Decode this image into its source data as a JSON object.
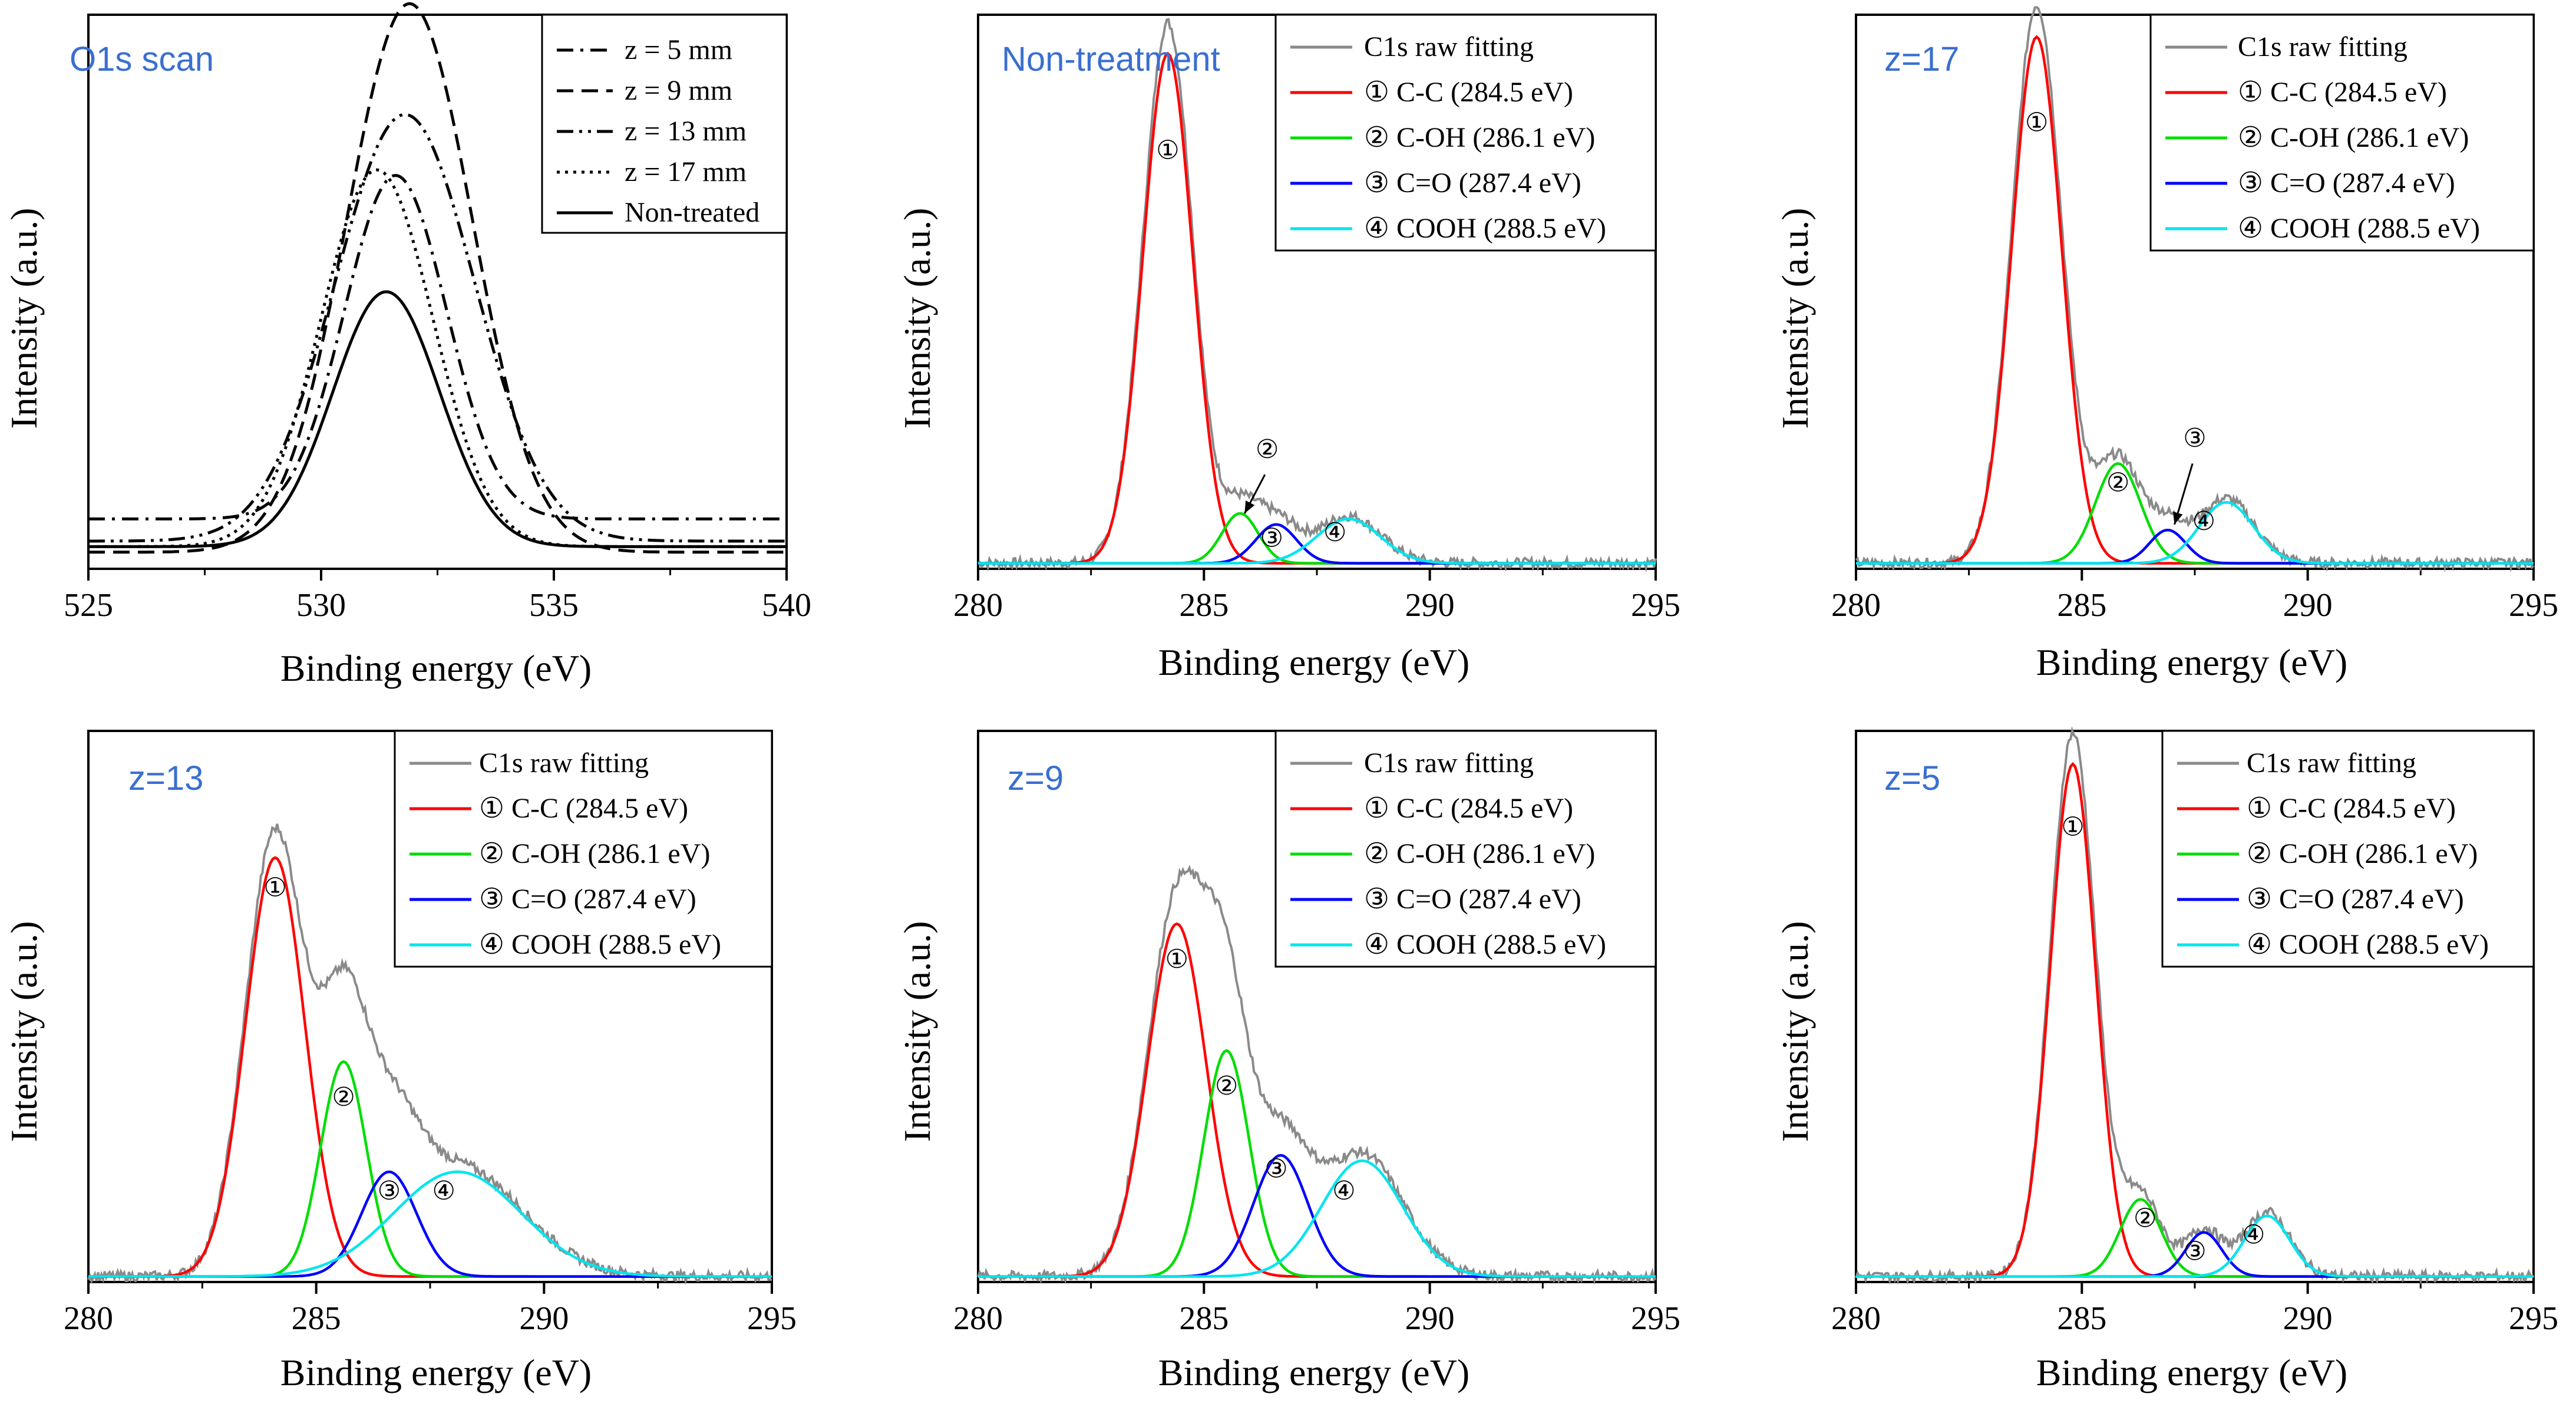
{
  "chart_data": [
    {
      "id": "p1",
      "type": "line",
      "tag": "O1s scan",
      "xlabel": "Binding energy (eV)",
      "ylabel": "Intensity (a.u.)",
      "xlim": [
        525,
        540
      ],
      "ylim": [
        0,
        1
      ],
      "xticks": [
        525,
        530,
        535,
        540
      ],
      "legend_position": "top-right",
      "series": [
        {
          "name": "z = 5 mm",
          "style": "dashdot",
          "baseline": 0.09,
          "amplitude": 0.62,
          "center": 531.6,
          "sigma": 1.1
        },
        {
          "name": "z = 9 mm",
          "style": "dashed",
          "baseline": 0.03,
          "amplitude": 0.99,
          "center": 531.9,
          "sigma": 1.35
        },
        {
          "name": "z = 13 mm",
          "style": "dashdotdot",
          "baseline": 0.05,
          "amplitude": 0.77,
          "center": 531.8,
          "sigma": 1.5
        },
        {
          "name": "z = 17 mm",
          "style": "dotted",
          "baseline": 0.04,
          "amplitude": 0.68,
          "center": 531.2,
          "sigma": 1.2
        },
        {
          "name": "Non-treated",
          "style": "solid",
          "baseline": 0.04,
          "amplitude": 0.46,
          "center": 531.4,
          "sigma": 1.15
        }
      ]
    },
    {
      "id": "p2",
      "type": "line",
      "tag": "Non-treatment",
      "xlabel": "Binding energy (eV)",
      "ylabel": "Intensity (a.u.)",
      "xlim": [
        280,
        295
      ],
      "ylim": [
        0,
        1
      ],
      "xticks": [
        280,
        285,
        290,
        295
      ],
      "legend_position": "top-right",
      "legend": [
        "C1s raw fitting",
        "① C-C (284.5 eV)",
        "② C-OH (286.1 eV)",
        "③ C=O (287.4 eV)",
        "④ COOH (288.5 eV)"
      ],
      "peaks": [
        {
          "name": "C-C",
          "center": 284.2,
          "amplitude": 0.92,
          "sigma": 0.55,
          "color": "#ff0000"
        },
        {
          "name": "C-OH",
          "center": 285.8,
          "amplitude": 0.09,
          "sigma": 0.4,
          "color": "#00dd00"
        },
        {
          "name": "C=O",
          "center": 286.6,
          "amplitude": 0.07,
          "sigma": 0.45,
          "color": "#0000ff"
        },
        {
          "name": "COOH",
          "center": 288.2,
          "amplitude": 0.08,
          "sigma": 0.7,
          "color": "#00e5ee"
        }
      ],
      "annotations": [
        {
          "label": "①",
          "x": 284.2,
          "y": 0.74
        },
        {
          "label": "②",
          "x": 286.4,
          "y": 0.2
        },
        {
          "label": "③",
          "x": 286.5,
          "y": 0.04
        },
        {
          "label": "④",
          "x": 287.9,
          "y": 0.05
        }
      ],
      "arrow": {
        "from": [
          286.35,
          0.17
        ],
        "to": [
          285.9,
          0.1
        ]
      }
    },
    {
      "id": "p3",
      "type": "line",
      "tag": "z=17",
      "xlabel": "Binding energy (eV)",
      "ylabel": "Intensity (a.u.)",
      "xlim": [
        280,
        295
      ],
      "ylim": [
        0,
        1
      ],
      "xticks": [
        280,
        285,
        290,
        295
      ],
      "legend_position": "top-right",
      "legend": [
        "C1s raw fitting",
        "① C-C (284.5 eV)",
        "② C-OH (286.1 eV)",
        "③ C=O (287.4 eV)",
        "④ COOH (288.5 eV)"
      ],
      "peaks": [
        {
          "name": "C-C",
          "center": 284.0,
          "amplitude": 0.95,
          "sigma": 0.55,
          "color": "#ff0000"
        },
        {
          "name": "C-OH",
          "center": 285.8,
          "amplitude": 0.18,
          "sigma": 0.5,
          "color": "#00dd00"
        },
        {
          "name": "C=O",
          "center": 286.9,
          "amplitude": 0.06,
          "sigma": 0.4,
          "color": "#0000ff"
        },
        {
          "name": "COOH",
          "center": 288.2,
          "amplitude": 0.11,
          "sigma": 0.6,
          "color": "#00e5ee"
        }
      ],
      "annotations": [
        {
          "label": "①",
          "x": 284.0,
          "y": 0.79
        },
        {
          "label": "②",
          "x": 285.8,
          "y": 0.14
        },
        {
          "label": "③",
          "x": 287.5,
          "y": 0.22
        },
        {
          "label": "④",
          "x": 287.7,
          "y": 0.07
        }
      ],
      "arrow": {
        "from": [
          287.45,
          0.19
        ],
        "to": [
          287.05,
          0.08
        ]
      }
    },
    {
      "id": "p4",
      "type": "line",
      "tag": "z=13",
      "xlabel": "Binding energy (eV)",
      "ylabel": "Intensity (a.u.)",
      "xlim": [
        280,
        295
      ],
      "ylim": [
        0,
        1
      ],
      "xticks": [
        280,
        285,
        290,
        295
      ],
      "legend_position": "top-right",
      "legend": [
        "C1s raw fitting",
        "① C-C (284.5 eV)",
        "② C-OH (286.1 eV)",
        "③ C=O (287.4 eV)",
        "④ COOH (288.5 eV)"
      ],
      "peaks": [
        {
          "name": "C-C",
          "center": 284.1,
          "amplitude": 0.76,
          "sigma": 0.65,
          "color": "#ff0000"
        },
        {
          "name": "C-OH",
          "center": 285.6,
          "amplitude": 0.39,
          "sigma": 0.5,
          "color": "#00dd00"
        },
        {
          "name": "C=O",
          "center": 286.6,
          "amplitude": 0.19,
          "sigma": 0.6,
          "color": "#0000ff"
        },
        {
          "name": "COOH",
          "center": 288.1,
          "amplitude": 0.19,
          "sigma": 1.4,
          "color": "#00e5ee"
        }
      ],
      "annotations": [
        {
          "label": "①",
          "x": 284.1,
          "y": 0.7
        },
        {
          "label": "②",
          "x": 285.6,
          "y": 0.32
        },
        {
          "label": "③",
          "x": 286.6,
          "y": 0.15
        },
        {
          "label": "④",
          "x": 287.8,
          "y": 0.15
        }
      ]
    },
    {
      "id": "p5",
      "type": "line",
      "tag": "z=9",
      "xlabel": "Binding energy (eV)",
      "ylabel": "Intensity (a.u.)",
      "xlim": [
        280,
        295
      ],
      "ylim": [
        0,
        1
      ],
      "xticks": [
        280,
        285,
        290,
        295
      ],
      "legend_position": "top-right",
      "legend": [
        "C1s raw fitting",
        "① C-C (284.5 eV)",
        "② C-OH (286.1 eV)",
        "③ C=O (287.4 eV)",
        "④ COOH (288.5 eV)"
      ],
      "peaks": [
        {
          "name": "C-C",
          "center": 284.4,
          "amplitude": 0.64,
          "sigma": 0.65,
          "color": "#ff0000"
        },
        {
          "name": "C-OH",
          "center": 285.5,
          "amplitude": 0.41,
          "sigma": 0.5,
          "color": "#00dd00"
        },
        {
          "name": "C=O",
          "center": 286.7,
          "amplitude": 0.22,
          "sigma": 0.6,
          "color": "#0000ff"
        },
        {
          "name": "COOH",
          "center": 288.5,
          "amplitude": 0.21,
          "sigma": 0.9,
          "color": "#00e5ee"
        }
      ],
      "annotations": [
        {
          "label": "①",
          "x": 284.4,
          "y": 0.57
        },
        {
          "label": "②",
          "x": 285.5,
          "y": 0.34
        },
        {
          "label": "③",
          "x": 286.6,
          "y": 0.19
        },
        {
          "label": "④",
          "x": 288.1,
          "y": 0.15
        }
      ]
    },
    {
      "id": "p6",
      "type": "line",
      "tag": "z=5",
      "xlabel": "Binding energy (eV)",
      "ylabel": "Intensity (a.u.)",
      "xlim": [
        280,
        295
      ],
      "ylim": [
        0,
        1
      ],
      "xticks": [
        280,
        285,
        290,
        295
      ],
      "legend_position": "top-right",
      "legend": [
        "C1s raw fitting",
        "① C-C (284.5 eV)",
        "② C-OH (286.1 eV)",
        "③ C=O (287.4 eV)",
        "④ COOH (288.5 eV)"
      ],
      "peaks": [
        {
          "name": "C-C",
          "center": 284.8,
          "amplitude": 0.93,
          "sigma": 0.5,
          "color": "#ff0000"
        },
        {
          "name": "C-OH",
          "center": 286.3,
          "amplitude": 0.14,
          "sigma": 0.45,
          "color": "#00dd00"
        },
        {
          "name": "C=O",
          "center": 287.7,
          "amplitude": 0.08,
          "sigma": 0.4,
          "color": "#0000ff"
        },
        {
          "name": "COOH",
          "center": 289.1,
          "amplitude": 0.11,
          "sigma": 0.5,
          "color": "#00e5ee"
        }
      ],
      "annotations": [
        {
          "label": "①",
          "x": 284.8,
          "y": 0.81
        },
        {
          "label": "②",
          "x": 286.4,
          "y": 0.1
        },
        {
          "label": "③",
          "x": 287.5,
          "y": 0.04
        },
        {
          "label": "④",
          "x": 288.8,
          "y": 0.07
        }
      ]
    }
  ]
}
